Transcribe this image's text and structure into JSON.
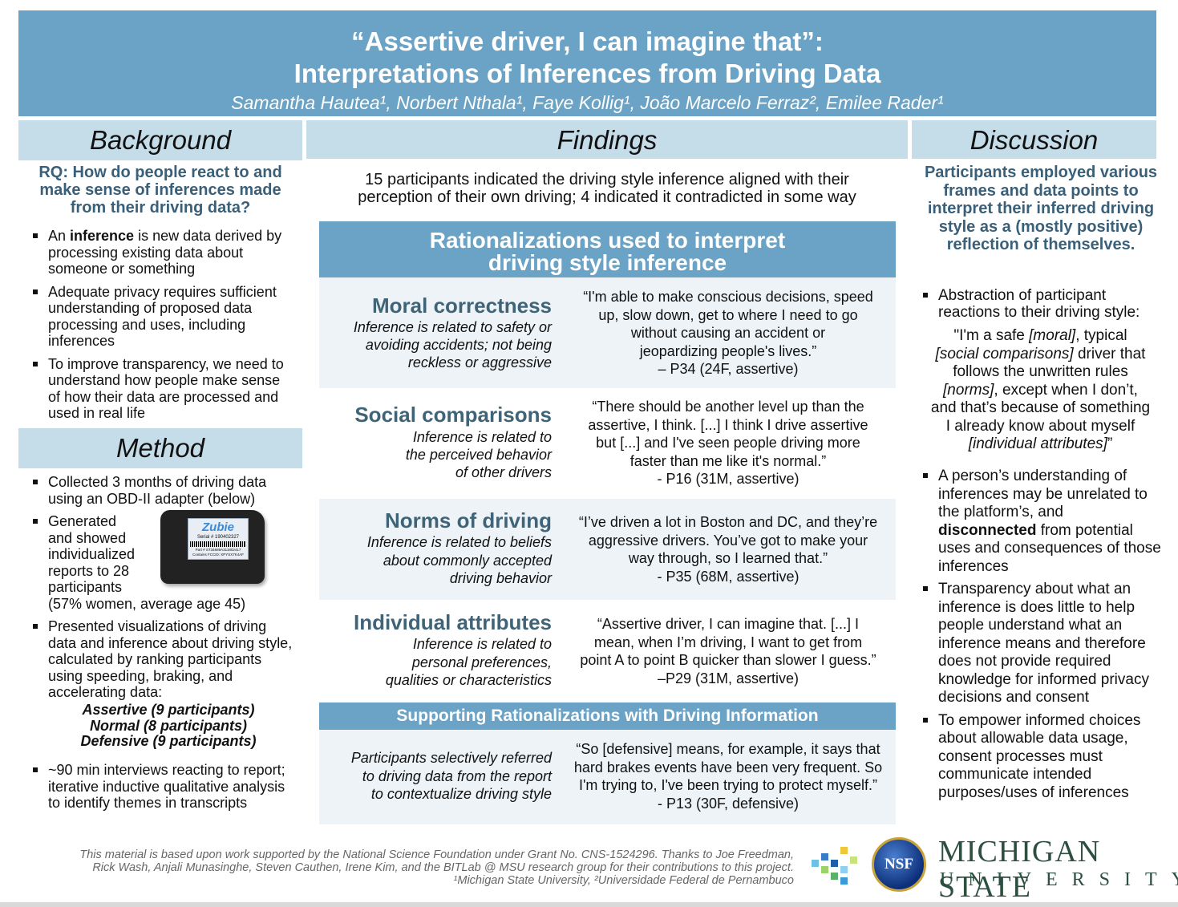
{
  "header": {
    "title_line1": "“Assertive driver, I can imagine that”:",
    "title_line2": "Interpretations of Inferences from Driving Data",
    "authors": "Samantha Hautea¹, Norbert Nthala¹, Faye Kollig¹, João Marcelo Ferraz², Emilee Rader¹"
  },
  "background": {
    "heading": "Background",
    "rq": "RQ: How do people react to and make sense of inferences made from their driving data?",
    "b1_pre": "An ",
    "b1_bold": "inference",
    "b1_post": " is new data derived by processing existing data about someone or something",
    "b2": "Adequate privacy requires sufficient understanding of proposed data processing and uses, including inferences",
    "b3": "To improve transparency, we need to understand how people make sense of how their data are processed and used in real life"
  },
  "method": {
    "heading": "Method",
    "b1": "Collected 3 months of driving data using an OBD-II adapter (below)",
    "b2_a": "Generated",
    "b2_b": "and showed",
    "b2_c": "individualized",
    "b2_d": "reports to 28",
    "b2_e": "participants",
    "b2_f": "(57% women, average age 45)",
    "b3": "Presented visualizations of driving data and inference about driving style, calculated by ranking participants using speeding, braking, and accelerating data:",
    "g1": "Assertive (9 participants)",
    "g2": "Normal (8 participants)",
    "g3": "Defensive (9 participants)",
    "b4": "~90 min interviews reacting to report; iterative inductive qualitative analysis to identify themes in transcripts",
    "device": {
      "brand": "Zubie",
      "serial": "Serial # 190402327",
      "part": "Part # ST34689A311802417",
      "fccid": "Contains FCCID: XPYSX7K4AF"
    }
  },
  "findings": {
    "heading": "Findings",
    "summary_l1": "15 participants indicated the driving style inference aligned with their",
    "summary_l2": "perception of their own driving; 4 indicated it contradicted in some way",
    "ratio_l1": "Rationalizations used to interpret",
    "ratio_l2": "driving style inference",
    "moral": {
      "name": "Moral correctness",
      "d1": "Inference is related to safety or",
      "d2": "avoiding accidents; not being",
      "d3": "reckless or aggressive",
      "q1": "“I'm able to make conscious decisions, speed",
      "q2": "up, slow down, get to where I need to go",
      "q3": "without causing an accident or",
      "q4": "jeopardizing people's lives.”",
      "q5": "– P34 (24F, assertive)"
    },
    "social": {
      "name": "Social comparisons",
      "d1": "Inference is related to",
      "d2": "the perceived behavior",
      "d3": "of other drivers",
      "q1": "“There should be another level up than the",
      "q2": "assertive, I think. [...] I think I drive assertive",
      "q3": "but [...] and I've seen people driving more",
      "q4": "faster than me like it's normal.”",
      "q5": "- P16 (31M, assertive)"
    },
    "norms": {
      "name": "Norms of driving",
      "d1": "Inference is related to beliefs",
      "d2": "about commonly accepted",
      "d3": "driving behavior",
      "q1": "“I’ve driven a lot in Boston and DC, and they’re",
      "q2": "aggressive drivers. You’ve got to make your",
      "q3": "way through, so I learned that.”",
      "q4": "- P35 (68M, assertive)"
    },
    "indiv": {
      "name": "Individual attributes",
      "d1": "Inference is related to",
      "d2": "personal preferences,",
      "d3": "qualities or characteristics",
      "q1": "“Assertive driver, I can imagine that. [...] I",
      "q2": "mean, when I’m driving, I want to get from",
      "q3": "point A to point B quicker than slower I guess.”",
      "q4": "–P29 (31M, assertive)"
    },
    "support_heading": "Supporting Rationalizations with Driving Information",
    "support": {
      "d1": "Participants selectively referred",
      "d2": "to driving data from the report",
      "d3": "to contextualize driving style",
      "q1": "“So [defensive] means, for example, it says that",
      "q2": "hard brakes events have been very frequent. So",
      "q3": "I'm trying to, I've been trying to protect myself.”",
      "q4": "- P13 (30F, defensive)"
    }
  },
  "discussion": {
    "heading": "Discussion",
    "lead": "Participants employed various frames and data points to interpret their inferred driving style as a (mostly positive) reflection of themselves.",
    "b1": "Abstraction of participant reactions to their driving style:",
    "qa": "\"I'm a safe ",
    "qb": "[moral]",
    "qc": ", typical",
    "qd": "[social comparisons]",
    "qe": " driver that",
    "qf": "follows the unwritten rules",
    "qg": "[norms]",
    "qh": ", except when I don’t,",
    "qi": "and that’s because of something",
    "qj": "I already know about myself",
    "qk": "[individual attributes]",
    "ql": "”",
    "b2_pre": "A person’s understanding of inferences may be unrelated to the platform’s, and ",
    "b2_bold": "disconnected",
    "b2_post": " from potential uses and consequences of those inferences",
    "b3": "Transparency about what an inference is does little to help people understand what an inference means and therefore does not provide required knowledge for informed privacy decisions and consent",
    "b4": "To empower informed choices about allowable data usage, consent processes must communicate intended purposes/uses of inferences"
  },
  "footer": {
    "line1": "This material is based upon work supported by the National Science Foundation under Grant No. CNS-1524296. Thanks to Joe Freedman,",
    "line2": "Rick Wash, Anjali Munasinghe, Steven Cauthen, Irene Kim, and the BITLab @ MSU research group for their contributions to this project.",
    "line3": "¹Michigan State University, ²Universidade Federal de Pernambuco"
  },
  "logos": {
    "nsf": "NSF",
    "msu_line1": "MICHIGAN STATE",
    "msu_line2": "UNIVERSITY"
  },
  "colors": {
    "header_blue": "#6aa3c5",
    "section_light": "#c5dde9",
    "teal_text": "#3f6478",
    "msu_green": "#2d4f40"
  }
}
